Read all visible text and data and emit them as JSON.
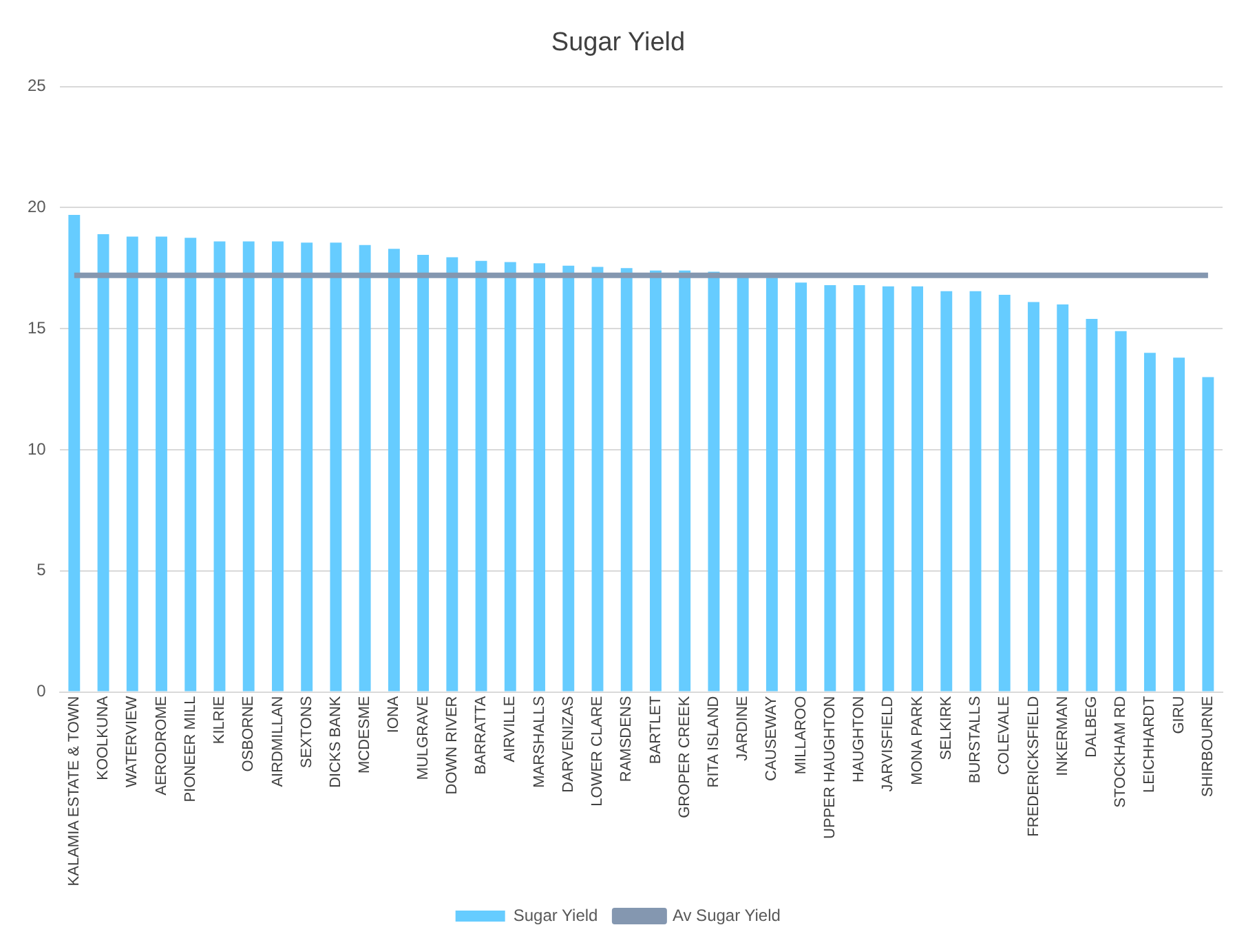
{
  "chart_data": {
    "type": "bar",
    "title": "Sugar Yield",
    "categories": [
      "KALAMIA ESTATE & TOWN",
      "KOOLKUNA",
      "WATERVIEW",
      "AERODROME",
      "PIONEER MILL",
      "KILRIE",
      "OSBORNE",
      "AIRDMILLAN",
      "SEXTONS",
      "DICKS BANK",
      "MCDESME",
      "IONA",
      "MULGRAVE",
      "DOWN RIVER",
      "BARRATTA",
      "AIRVILLE",
      "MARSHALLS",
      "DARVENIZAS",
      "LOWER CLARE",
      "RAMSDENS",
      "BARTLET",
      "GROPER CREEK",
      "RITA ISLAND",
      "JARDINE",
      "CAUSEWAY",
      "MILLAROO",
      "UPPER HAUGHTON",
      "HAUGHTON",
      "JARVISFIELD",
      "MONA PARK",
      "SELKIRK",
      "BURSTALLS",
      "COLEVALE",
      "FREDERICKSFIELD",
      "INKERMAN",
      "DALBEG",
      "STOCKHAM RD",
      "LEICHHARDT",
      "GIRU",
      "SHIRBOURNE"
    ],
    "series": [
      {
        "name": "Sugar Yield",
        "color": "#66ccff",
        "values": [
          19.7,
          18.9,
          18.8,
          18.8,
          18.75,
          18.6,
          18.6,
          18.6,
          18.55,
          18.55,
          18.45,
          18.3,
          18.05,
          17.95,
          17.8,
          17.75,
          17.7,
          17.6,
          17.55,
          17.5,
          17.4,
          17.4,
          17.35,
          17.2,
          17.1,
          16.9,
          16.8,
          16.8,
          16.75,
          16.75,
          16.55,
          16.55,
          16.4,
          16.1,
          16.0,
          15.4,
          14.9,
          14.0,
          13.8,
          13.0
        ]
      },
      {
        "name": "Av Sugar Yield",
        "type": "line",
        "color": "#8497b0",
        "values": [
          17.2,
          17.2,
          17.2,
          17.2,
          17.2,
          17.2,
          17.2,
          17.2,
          17.2,
          17.2,
          17.2,
          17.2,
          17.2,
          17.2,
          17.2,
          17.2,
          17.2,
          17.2,
          17.2,
          17.2,
          17.2,
          17.2,
          17.2,
          17.2,
          17.2,
          17.2,
          17.2,
          17.2,
          17.2,
          17.2,
          17.2,
          17.2,
          17.2,
          17.2,
          17.2,
          17.2,
          17.2,
          17.2,
          17.2,
          17.2
        ]
      }
    ],
    "ylim": [
      0,
      25
    ],
    "yticks": [
      0,
      5,
      10,
      15,
      20,
      25
    ],
    "grid": "y",
    "legend": "bottom",
    "marker": "none"
  }
}
